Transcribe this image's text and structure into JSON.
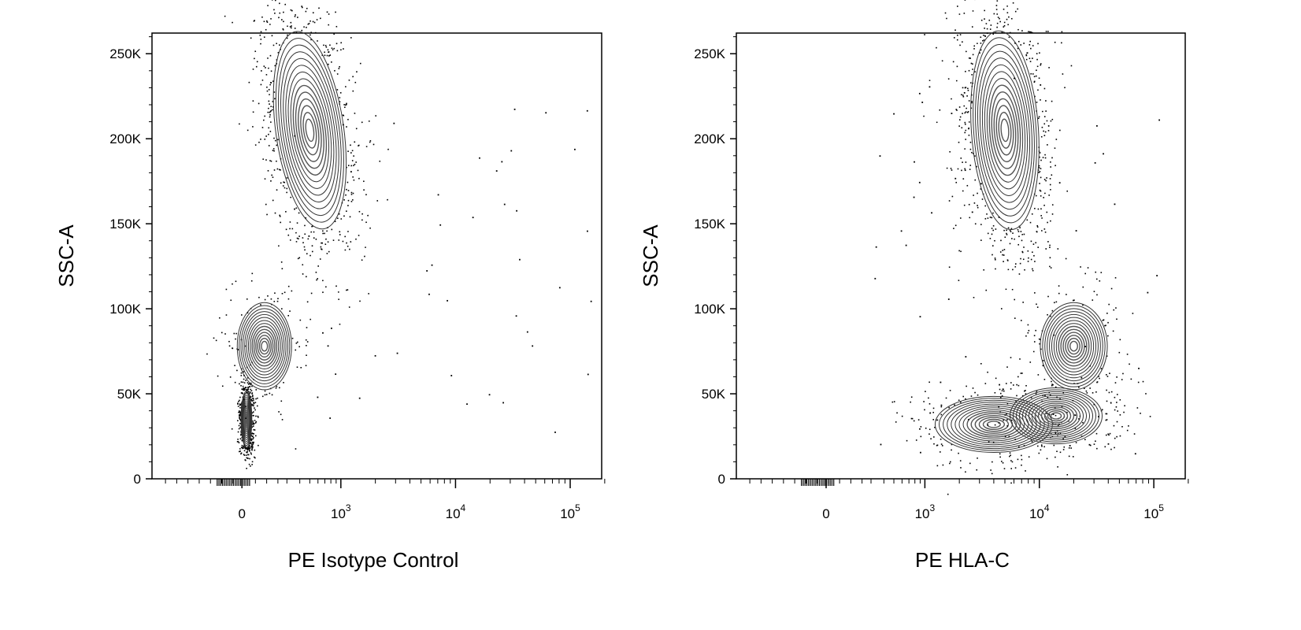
{
  "chart_data": [
    {
      "type": "scatter",
      "style": "contour plot with outlier dots (flow cytometry)",
      "xlabel": "PE Isotype Control",
      "ylabel": "SSC-A",
      "x_scale": "biexponential (logicle)",
      "x_ticks": [
        "0",
        "10^3",
        "10^4",
        "10^5"
      ],
      "y_ticks": [
        "0",
        "50K",
        "100K",
        "150K",
        "200K",
        "250K"
      ],
      "ylim": [
        0,
        262144
      ],
      "xlim": [
        -1500,
        262144
      ],
      "populations": [
        {
          "x": 30,
          "y": 35000,
          "sd_x": 0.22,
          "sd_y": 9000,
          "weight": 0.32
        },
        {
          "x": 150,
          "y": 78000,
          "sd_x": 0.22,
          "sd_y": 14000,
          "weight": 0.13
        },
        {
          "x": 500,
          "y": 205000,
          "sd_x": 0.18,
          "sd_y": 32000,
          "weight": 0.55
        }
      ]
    },
    {
      "type": "scatter",
      "style": "contour plot with outlier dots (flow cytometry)",
      "xlabel": "PE  HLA-C",
      "ylabel": "SSC-A",
      "x_scale": "biexponential (logicle)",
      "x_ticks": [
        "0",
        "10^3",
        "10^4",
        "10^5"
      ],
      "y_ticks": [
        "0",
        "50K",
        "100K",
        "150K",
        "200K",
        "250K"
      ],
      "ylim": [
        0,
        262144
      ],
      "xlim": [
        -1500,
        262144
      ],
      "populations": [
        {
          "x": 4000,
          "y": 32000,
          "sd_x": 0.28,
          "sd_y": 9000,
          "weight": 0.22
        },
        {
          "x": 14000,
          "y": 37000,
          "sd_x": 0.22,
          "sd_y": 9000,
          "weight": 0.13
        },
        {
          "x": 20000,
          "y": 78000,
          "sd_x": 0.16,
          "sd_y": 14000,
          "weight": 0.12
        },
        {
          "x": 5000,
          "y": 205000,
          "sd_x": 0.16,
          "sd_y": 32000,
          "weight": 0.53
        }
      ]
    }
  ]
}
